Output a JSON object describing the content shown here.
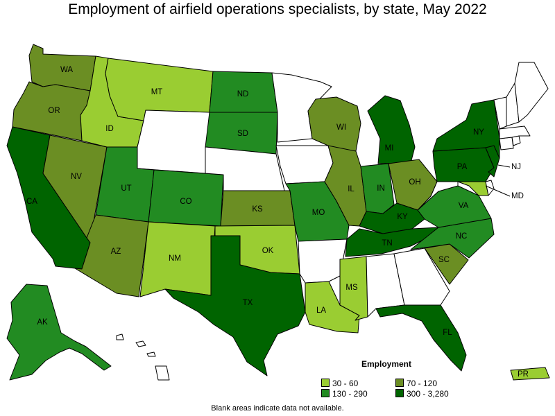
{
  "title": "Employment of airfield operations specialists, by state, May 2022",
  "footnote": "Blank areas indicate data not available.",
  "legend": {
    "title": "Employment",
    "bins": [
      {
        "label": "30 - 60",
        "color": "#9acd32"
      },
      {
        "label": "70 - 120",
        "color": "#6b8e23"
      },
      {
        "label": "130 - 290",
        "color": "#228b22"
      },
      {
        "label": "300 - 3,280",
        "color": "#006400"
      }
    ]
  },
  "states": {
    "WA": {
      "label": "WA",
      "bin": 1
    },
    "OR": {
      "label": "OR",
      "bin": 1
    },
    "CA": {
      "label": "CA",
      "bin": 3
    },
    "NV": {
      "label": "NV",
      "bin": 1
    },
    "ID": {
      "label": "ID",
      "bin": 0
    },
    "MT": {
      "label": "MT",
      "bin": 0
    },
    "WY": {
      "label": "",
      "bin": -1
    },
    "UT": {
      "label": "UT",
      "bin": 2
    },
    "AZ": {
      "label": "AZ",
      "bin": 1
    },
    "CO": {
      "label": "CO",
      "bin": 2
    },
    "NM": {
      "label": "NM",
      "bin": 0
    },
    "ND": {
      "label": "ND",
      "bin": 2
    },
    "SD": {
      "label": "SD",
      "bin": 2
    },
    "NE": {
      "label": "",
      "bin": -1
    },
    "KS": {
      "label": "KS",
      "bin": 1
    },
    "OK": {
      "label": "OK",
      "bin": 0
    },
    "TX": {
      "label": "TX",
      "bin": 3
    },
    "MN": {
      "label": "",
      "bin": -1
    },
    "IA": {
      "label": "",
      "bin": -1
    },
    "MO": {
      "label": "MO",
      "bin": 2
    },
    "AR": {
      "label": "",
      "bin": -1
    },
    "LA": {
      "label": "LA",
      "bin": 0
    },
    "WI": {
      "label": "WI",
      "bin": 1
    },
    "IL": {
      "label": "IL",
      "bin": 1
    },
    "MI": {
      "label": "MI",
      "bin": 3
    },
    "IN": {
      "label": "IN",
      "bin": 2
    },
    "OH": {
      "label": "OH",
      "bin": 1
    },
    "KY": {
      "label": "KY",
      "bin": 3
    },
    "TN": {
      "label": "TN",
      "bin": 3
    },
    "MS": {
      "label": "MS",
      "bin": 0
    },
    "AL": {
      "label": "",
      "bin": -1
    },
    "GA": {
      "label": "",
      "bin": -1
    },
    "FL": {
      "label": "FL",
      "bin": 3
    },
    "SC": {
      "label": "SC",
      "bin": 1
    },
    "NC": {
      "label": "NC",
      "bin": 2
    },
    "VA": {
      "label": "VA",
      "bin": 2
    },
    "WV": {
      "label": "",
      "bin": -1
    },
    "PA": {
      "label": "PA",
      "bin": 3
    },
    "NY": {
      "label": "NY",
      "bin": 3
    },
    "NJ": {
      "label": "NJ",
      "bin": 3
    },
    "MD": {
      "label": "MD",
      "bin": 0
    },
    "DE": {
      "label": "",
      "bin": -1
    },
    "CT": {
      "label": "",
      "bin": -1
    },
    "RI": {
      "label": "",
      "bin": -1
    },
    "MA": {
      "label": "",
      "bin": -1
    },
    "VT": {
      "label": "",
      "bin": -1
    },
    "NH": {
      "label": "",
      "bin": -1
    },
    "ME": {
      "label": "",
      "bin": -1
    },
    "AK": {
      "label": "AK",
      "bin": 2
    },
    "HI": {
      "label": "",
      "bin": -1
    },
    "PR": {
      "label": "PR",
      "bin": 0
    }
  }
}
